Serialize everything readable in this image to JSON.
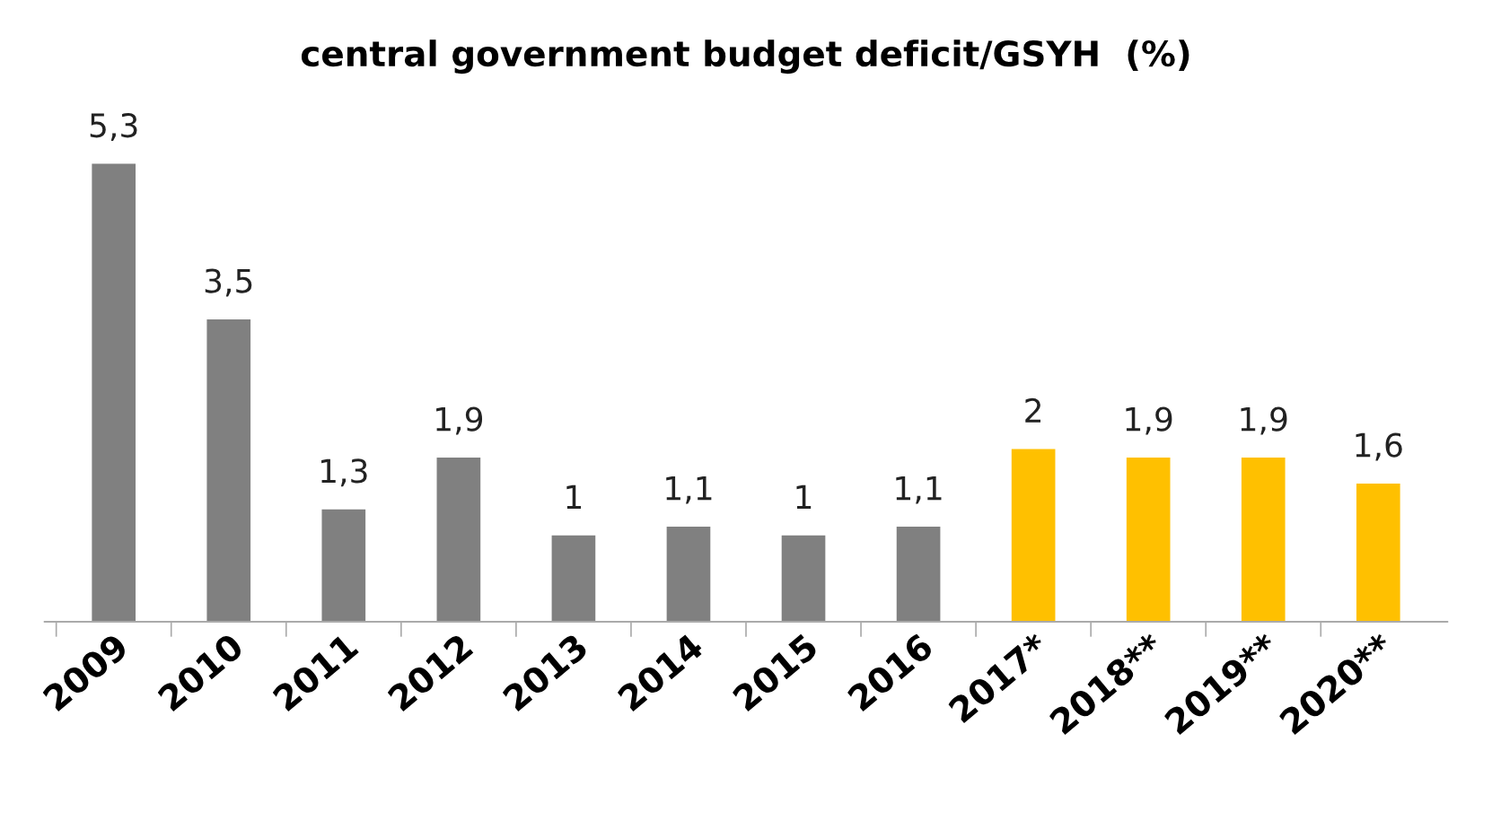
{
  "chart_data": {
    "type": "bar",
    "title": "central government budget deficit/GSYH  (%)",
    "categories": [
      "2009",
      "2010",
      "2011",
      "2012",
      "2013",
      "2014",
      "2015",
      "2016",
      "2017*",
      "2018**",
      "2019**",
      "2020**"
    ],
    "values": [
      5.3,
      3.5,
      1.3,
      1.9,
      1,
      1.1,
      1,
      1.1,
      2,
      1.9,
      1.9,
      1.6
    ],
    "colors": [
      "#808080",
      "#808080",
      "#808080",
      "#808080",
      "#808080",
      "#808080",
      "#808080",
      "#808080",
      "#ffc000",
      "#ffc000",
      "#ffc000",
      "#ffc000"
    ],
    "value_labels": [
      "5,3",
      "3,5",
      "1,3",
      "1,9",
      "1",
      "1,1",
      "1",
      "1,1",
      "2",
      "1,9",
      "1,9",
      "1,6"
    ],
    "grid": false,
    "legend": false,
    "tick_labels": "x"
  }
}
